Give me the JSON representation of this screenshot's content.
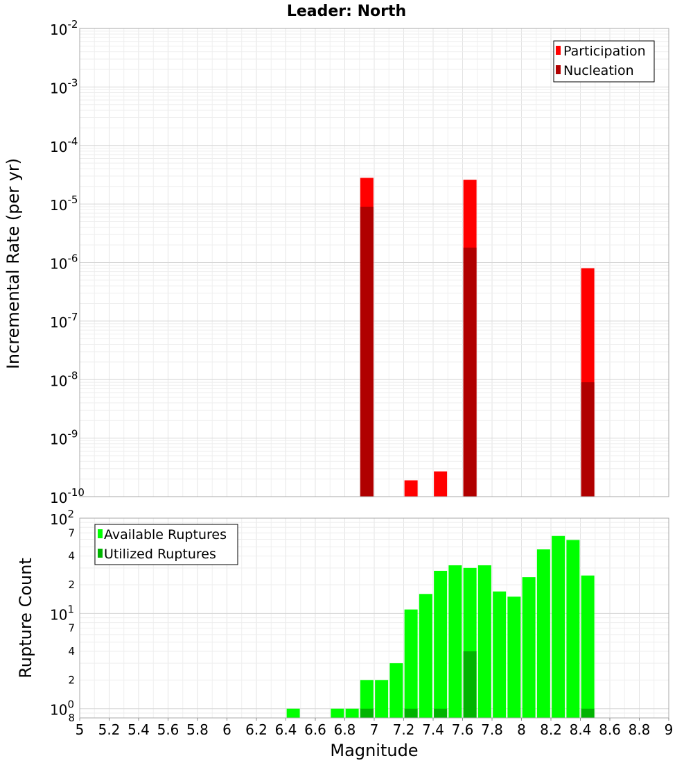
{
  "chart_data": [
    {
      "type": "bar",
      "title": "Leader: North",
      "xlabel": "",
      "ylabel": "Incremental Rate (per yr)",
      "yscale": "log",
      "xlim": [
        5,
        9
      ],
      "ylim": [
        1e-10,
        0.01
      ],
      "ytick_labels": [
        {
          "base": "10",
          "exp": "-10"
        },
        {
          "base": "10",
          "exp": "-9"
        },
        {
          "base": "10",
          "exp": "-8"
        },
        {
          "base": "10",
          "exp": "-7"
        },
        {
          "base": "10",
          "exp": "-6"
        },
        {
          "base": "10",
          "exp": "-5"
        },
        {
          "base": "10",
          "exp": "-4"
        },
        {
          "base": "10",
          "exp": "-3"
        },
        {
          "base": "10",
          "exp": "-2"
        }
      ],
      "legend": {
        "position": "top-right",
        "entries": [
          "Participation",
          "Nucleation"
        ]
      },
      "series": [
        {
          "name": "Participation",
          "color": "#ff0000",
          "points": [
            {
              "x": 6.95,
              "y": 2.8e-05
            },
            {
              "x": 7.25,
              "y": 1.9e-10
            },
            {
              "x": 7.45,
              "y": 2.7e-10
            },
            {
              "x": 7.65,
              "y": 2.6e-05
            },
            {
              "x": 8.45,
              "y": 8e-07
            }
          ]
        },
        {
          "name": "Nucleation",
          "color": "#b00000",
          "points": [
            {
              "x": 6.95,
              "y": 9e-06
            },
            {
              "x": 7.65,
              "y": 1.8e-06
            },
            {
              "x": 8.45,
              "y": 9e-09
            }
          ]
        }
      ]
    },
    {
      "type": "bar",
      "title": "",
      "xlabel": "Magnitude",
      "ylabel": "Rupture Count",
      "yscale": "log",
      "xlim": [
        5,
        9
      ],
      "ylim": [
        0.8,
        100
      ],
      "xticks": [
        "5",
        "5.2",
        "5.4",
        "5.6",
        "5.8",
        "6",
        "6.2",
        "6.4",
        "6.6",
        "6.8",
        "7",
        "7.2",
        "7.4",
        "7.6",
        "7.8",
        "8",
        "8.2",
        "8.4",
        "8.6",
        "8.8",
        "9"
      ],
      "major_ytick_labels": [
        {
          "value": 1,
          "base": "10",
          "exp": "0"
        },
        {
          "value": 10,
          "base": "10",
          "exp": "1"
        },
        {
          "value": 100,
          "base": "10",
          "exp": "2"
        }
      ],
      "minor_ytick_labels": [
        {
          "value": 0.8,
          "label": "8"
        },
        {
          "value": 2,
          "label": "2"
        },
        {
          "value": 4,
          "label": "4"
        },
        {
          "value": 7,
          "label": "7"
        },
        {
          "value": 20,
          "label": "2"
        },
        {
          "value": 40,
          "label": "4"
        },
        {
          "value": 70,
          "label": "7"
        }
      ],
      "legend": {
        "position": "top-left",
        "entries": [
          "Available Ruptures",
          "Utilized Ruptures"
        ]
      },
      "series": [
        {
          "name": "Available Ruptures",
          "color": "#00ff00",
          "points": [
            {
              "x": 6.45,
              "y": 1
            },
            {
              "x": 6.75,
              "y": 1
            },
            {
              "x": 6.85,
              "y": 1
            },
            {
              "x": 6.95,
              "y": 2
            },
            {
              "x": 7.05,
              "y": 2
            },
            {
              "x": 7.15,
              "y": 3
            },
            {
              "x": 7.25,
              "y": 11
            },
            {
              "x": 7.35,
              "y": 16
            },
            {
              "x": 7.45,
              "y": 28
            },
            {
              "x": 7.55,
              "y": 32
            },
            {
              "x": 7.65,
              "y": 30
            },
            {
              "x": 7.75,
              "y": 32
            },
            {
              "x": 7.85,
              "y": 17
            },
            {
              "x": 7.95,
              "y": 15
            },
            {
              "x": 8.05,
              "y": 24
            },
            {
              "x": 8.15,
              "y": 47
            },
            {
              "x": 8.25,
              "y": 65
            },
            {
              "x": 8.35,
              "y": 59
            },
            {
              "x": 8.45,
              "y": 25
            }
          ]
        },
        {
          "name": "Utilized Ruptures",
          "color": "#00b400",
          "points": [
            {
              "x": 6.95,
              "y": 1
            },
            {
              "x": 7.25,
              "y": 1
            },
            {
              "x": 7.45,
              "y": 1
            },
            {
              "x": 7.65,
              "y": 4
            },
            {
              "x": 8.45,
              "y": 1
            }
          ]
        }
      ]
    }
  ]
}
